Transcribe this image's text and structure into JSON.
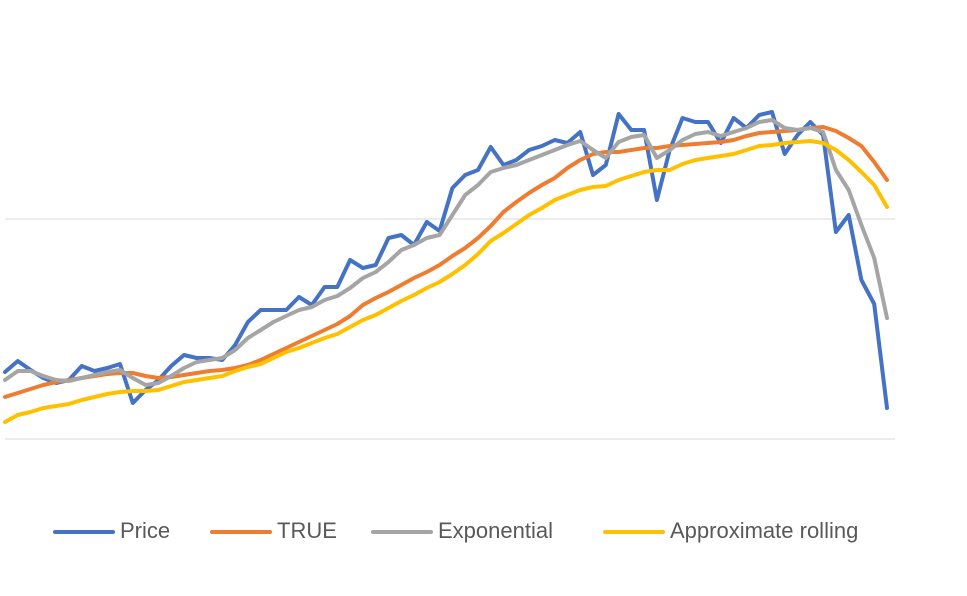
{
  "chart_data": {
    "type": "line",
    "categories": [
      null,
      null,
      null,
      null,
      null,
      null,
      null,
      null,
      null,
      null,
      null,
      null,
      null,
      null,
      null,
      null,
      null,
      null,
      null,
      null,
      null,
      null,
      null,
      null,
      null,
      null,
      null,
      null,
      null,
      null,
      null,
      null,
      null,
      null,
      null,
      null,
      null,
      null,
      null,
      null,
      null,
      null,
      null,
      null,
      null,
      null,
      null,
      null,
      null,
      null,
      null,
      null,
      null,
      null,
      null,
      null,
      null,
      null,
      null,
      null,
      null,
      null,
      null,
      null,
      null,
      null,
      null,
      null,
      null,
      null
    ],
    "ylim": [
      -45,
      439
    ],
    "yticks": [
      0,
      220
    ],
    "grid": true,
    "legend": "bottom",
    "series": [
      {
        "name": "Price",
        "color": "#4472c4",
        "values": [
          67,
          78,
          69,
          61,
          56,
          59,
          73,
          68,
          71,
          75,
          36,
          49,
          59,
          73,
          84,
          81,
          81,
          79,
          94,
          117,
          129,
          129,
          129,
          142,
          134,
          152,
          152,
          179,
          171,
          174,
          201,
          204,
          194,
          217,
          208,
          251,
          264,
          269,
          292,
          274,
          279,
          289,
          293,
          299,
          296,
          307,
          264,
          274,
          325,
          309,
          309,
          239,
          289,
          321,
          317,
          317,
          296,
          321,
          311,
          324,
          327,
          285,
          304,
          317,
          304,
          207,
          224,
          159,
          135,
          31
        ]
      },
      {
        "name": "TRUE",
        "color": "#ed7d31",
        "values": [
          42,
          46,
          50,
          54,
          57,
          59,
          61,
          63,
          65,
          66,
          66,
          63,
          61,
          62,
          64,
          66,
          68,
          69,
          71,
          74,
          79,
          85,
          91,
          97,
          103,
          109,
          115,
          123,
          134,
          141,
          147,
          154,
          161,
          167,
          174,
          183,
          191,
          201,
          213,
          227,
          237,
          246,
          254,
          261,
          271,
          279,
          285,
          287,
          287,
          289,
          291,
          291,
          293,
          294,
          295,
          296,
          297,
          299,
          303,
          306,
          307,
          308,
          309,
          311,
          312,
          308,
          301,
          293,
          277,
          259
        ]
      },
      {
        "name": "Exponential",
        "color": "#a5a5a5",
        "values": [
          59,
          68,
          68,
          63,
          59,
          58,
          61,
          64,
          67,
          69,
          61,
          54,
          56,
          63,
          71,
          77,
          79,
          81,
          89,
          101,
          109,
          117,
          123,
          129,
          132,
          139,
          143,
          151,
          161,
          167,
          177,
          189,
          194,
          201,
          204,
          224,
          244,
          254,
          267,
          271,
          274,
          279,
          284,
          289,
          294,
          298,
          289,
          281,
          297,
          302,
          304,
          281,
          289,
          299,
          305,
          307,
          303,
          307,
          311,
          317,
          319,
          311,
          309,
          311,
          307,
          269,
          249,
          214,
          181,
          121
        ]
      },
      {
        "name": "Approximate rolling",
        "color": "#ffc000",
        "values": [
          17,
          24,
          27,
          31,
          33,
          35,
          39,
          42,
          45,
          47,
          48,
          48,
          49,
          53,
          57,
          59,
          61,
          63,
          68,
          72,
          75,
          81,
          87,
          91,
          96,
          101,
          105,
          112,
          119,
          124,
          131,
          138,
          144,
          151,
          157,
          165,
          174,
          185,
          198,
          206,
          215,
          224,
          231,
          239,
          244,
          249,
          252,
          253,
          259,
          263,
          267,
          269,
          269,
          275,
          279,
          281,
          283,
          285,
          289,
          293,
          294,
          296,
          297,
          298,
          296,
          289,
          279,
          267,
          254,
          232
        ]
      }
    ]
  }
}
